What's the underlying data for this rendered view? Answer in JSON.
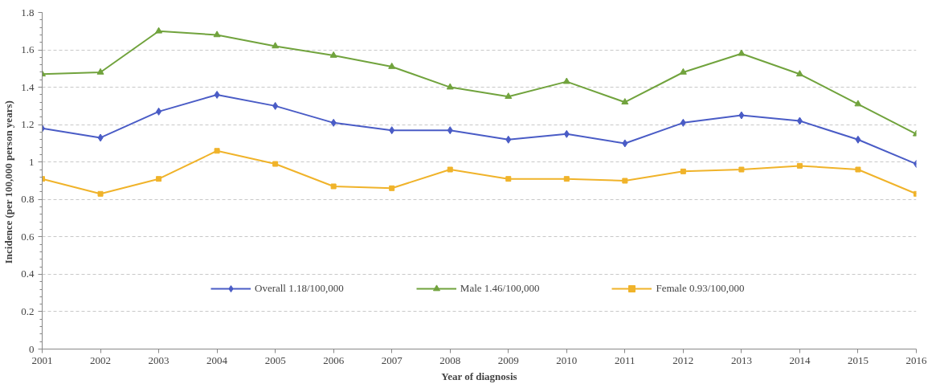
{
  "chart_data": {
    "type": "line",
    "xlabel": "Year of diagnosis",
    "ylabel": "Incidence  (per 100,000 person years)",
    "x": [
      2001,
      2002,
      2003,
      2004,
      2005,
      2006,
      2007,
      2008,
      2009,
      2010,
      2011,
      2012,
      2013,
      2014,
      2015,
      2016
    ],
    "xlim": [
      2001,
      2016
    ],
    "xticks": [
      2001,
      2002,
      2003,
      2004,
      2005,
      2006,
      2007,
      2008,
      2009,
      2010,
      2011,
      2012,
      2013,
      2014,
      2015,
      2016
    ],
    "ylim": [
      0,
      1.8
    ],
    "yticks": [
      {
        "value": 0,
        "label": "0"
      },
      {
        "value": 0.2,
        "label": "0.2"
      },
      {
        "value": 0.4,
        "label": "0.4"
      },
      {
        "value": 0.6,
        "label": "0.6"
      },
      {
        "value": 0.8,
        "label": "0.8"
      },
      {
        "value": 1,
        "label": "1"
      },
      {
        "value": 1.2,
        "label": "1.2"
      },
      {
        "value": 1.4,
        "label": "1.4"
      },
      {
        "value": 1.6,
        "label": "1.6"
      },
      {
        "value": 1.8,
        "label": "1.8"
      }
    ],
    "grid": "y",
    "legend": "center",
    "line_style": "solid",
    "series": [
      {
        "name": "Overall 1.18/100,000",
        "color": "#4a5cc6",
        "marker": "diamond",
        "values": [
          1.18,
          1.13,
          1.27,
          1.36,
          1.3,
          1.21,
          1.17,
          1.17,
          1.12,
          1.15,
          1.1,
          1.21,
          1.25,
          1.22,
          1.12,
          0.99
        ]
      },
      {
        "name": "Male 1.46/100,000",
        "color": "#71a33d",
        "marker": "triangle",
        "values": [
          1.47,
          1.48,
          1.7,
          1.68,
          1.62,
          1.57,
          1.51,
          1.4,
          1.35,
          1.43,
          1.32,
          1.48,
          1.58,
          1.47,
          1.31,
          1.15
        ]
      },
      {
        "name": "Female 0.93/100,000",
        "color": "#f0b32a",
        "marker": "square",
        "values": [
          0.91,
          0.83,
          0.91,
          1.06,
          0.99,
          0.87,
          0.86,
          0.96,
          0.91,
          0.91,
          0.9,
          0.95,
          0.96,
          0.98,
          0.96,
          0.83
        ]
      }
    ]
  }
}
